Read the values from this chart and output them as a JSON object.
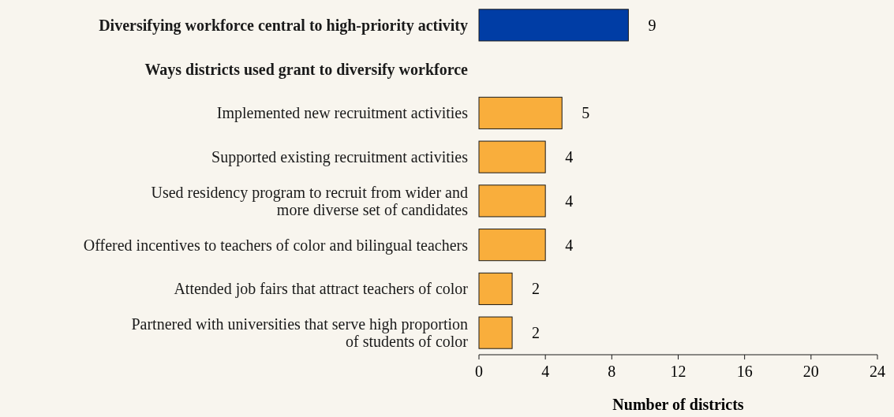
{
  "chart_data": {
    "type": "bar",
    "orientation": "horizontal",
    "xlabel": "Number of districts",
    "categories": [
      "Diversifying workforce central to high-priority activity",
      "Ways districts used grant to diversify workforce",
      "Implemented new recruitment activities",
      "Supported existing recruitment activities",
      "Used residency program to recruit from wider and\nmore diverse set of candidates",
      "Offered incentives to teachers of color and bilingual teachers",
      "Attended job fairs that attract teachers of color",
      "Partnered with universities that serve high proportion\nof students of color"
    ],
    "values": [
      9,
      null,
      5,
      4,
      4,
      4,
      2,
      2
    ],
    "colors": [
      "#003da5",
      null,
      "#f9ae3c",
      "#f9ae3c",
      "#f9ae3c",
      "#f9ae3c",
      "#f9ae3c",
      "#f9ae3c"
    ],
    "xlim": [
      0,
      24
    ],
    "xticks": [
      0,
      4,
      8,
      12,
      16,
      20,
      24
    ],
    "data_labels": true
  }
}
